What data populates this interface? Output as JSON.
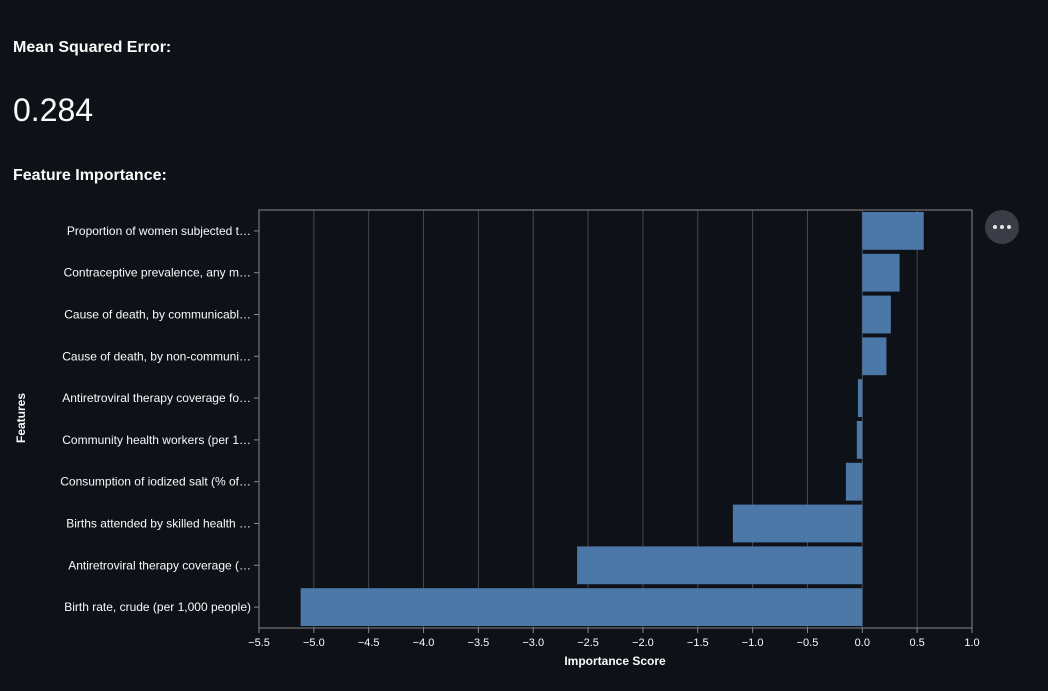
{
  "metrics": {
    "mse_label": "Mean Squared Error:",
    "mse_value": "0.284"
  },
  "feature_importance": {
    "heading": "Feature Importance:"
  },
  "menu": {
    "icon": "more-horizontal-icon"
  },
  "colors": {
    "background": "#0e1117",
    "bar": "#4c78a8",
    "text": "#fafafa",
    "grid": "#444a55"
  },
  "chart_data": {
    "type": "bar",
    "orientation": "horizontal",
    "title": "",
    "xlabel": "Importance Score",
    "ylabel": "Features",
    "xlim": [
      -5.5,
      1.0
    ],
    "xticks": [
      -5.5,
      -5.0,
      -4.5,
      -4.0,
      -3.5,
      -3.0,
      -2.5,
      -2.0,
      -1.5,
      -1.0,
      -0.5,
      0.0,
      0.5,
      1.0
    ],
    "xtick_labels": [
      "−5.5",
      "−5.0",
      "−4.5",
      "−4.0",
      "−3.5",
      "−3.0",
      "−2.5",
      "−2.0",
      "−1.5",
      "−1.0",
      "−0.5",
      "0.0",
      "0.5",
      "1.0"
    ],
    "grid": true,
    "categories": [
      "Proportion of women subjected t…",
      "Contraceptive prevalence, any m…",
      "Cause of death, by communicabl…",
      "Cause of death, by non-communi…",
      "Antiretroviral therapy coverage fo…",
      "Community health workers (per 1…",
      "Consumption of iodized salt (% of…",
      "Births attended by skilled health …",
      "Antiretroviral therapy coverage (…",
      "Birth rate, crude (per 1,000 people)"
    ],
    "values": [
      0.56,
      0.34,
      0.26,
      0.22,
      -0.04,
      -0.05,
      -0.15,
      -1.18,
      -2.6,
      -5.12
    ]
  }
}
